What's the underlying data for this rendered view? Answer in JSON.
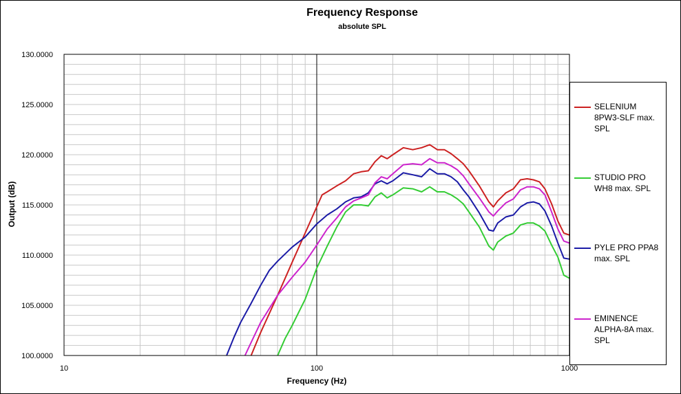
{
  "chart_data": {
    "type": "line",
    "title": "Frequency Response",
    "subtitle": "absolute SPL",
    "xlabel": "Frequency (Hz)",
    "ylabel": "Output (dB)",
    "x_scale": "log",
    "xlim": [
      10,
      1000
    ],
    "ylim": [
      100,
      130
    ],
    "x_tick_labels": [
      "10",
      "100",
      "1000"
    ],
    "y_tick_labels": [
      "100.0000",
      "105.0000",
      "110.0000",
      "115.0000",
      "120.0000",
      "125.0000",
      "130.0000"
    ],
    "y_ticks": [
      100,
      105,
      110,
      115,
      120,
      125,
      130
    ],
    "grid": true,
    "legend_position": "right",
    "series": [
      {
        "name": "SELENIUM 8PW3-SLF max. SPL",
        "color": "#cc2020",
        "x": [
          55,
          60,
          70,
          80,
          90,
          100,
          105,
          110,
          120,
          130,
          140,
          150,
          160,
          170,
          180,
          190,
          200,
          220,
          240,
          260,
          280,
          300,
          320,
          340,
          360,
          380,
          400,
          440,
          480,
          500,
          520,
          560,
          600,
          640,
          680,
          720,
          760,
          800,
          850,
          900,
          950,
          1000
        ],
        "y": [
          100.0,
          102.3,
          106.0,
          109.3,
          112.2,
          114.8,
          116.0,
          116.3,
          116.9,
          117.4,
          118.1,
          118.3,
          118.4,
          119.3,
          119.9,
          119.6,
          120.0,
          120.7,
          120.5,
          120.7,
          121.0,
          120.5,
          120.5,
          120.1,
          119.6,
          119.1,
          118.4,
          116.9,
          115.3,
          114.8,
          115.4,
          116.2,
          116.6,
          117.5,
          117.6,
          117.5,
          117.3,
          116.6,
          115.1,
          113.4,
          112.2,
          112.0
        ]
      },
      {
        "name": "STUDIO PRO WH8 max. SPL",
        "color": "#33cc33",
        "x": [
          70,
          75,
          80,
          90,
          100,
          110,
          120,
          130,
          140,
          150,
          160,
          170,
          180,
          190,
          200,
          220,
          240,
          260,
          280,
          300,
          320,
          340,
          360,
          380,
          400,
          440,
          480,
          500,
          520,
          560,
          600,
          640,
          680,
          720,
          760,
          800,
          850,
          900,
          950,
          1000
        ],
        "y": [
          100.0,
          101.7,
          103.0,
          105.6,
          108.7,
          110.9,
          112.8,
          114.3,
          115.0,
          115.0,
          114.9,
          115.8,
          116.2,
          115.7,
          116.0,
          116.7,
          116.6,
          116.3,
          116.8,
          116.3,
          116.3,
          116.0,
          115.6,
          115.1,
          114.3,
          112.8,
          110.9,
          110.5,
          111.3,
          111.9,
          112.2,
          113.0,
          113.2,
          113.2,
          112.9,
          112.4,
          111.0,
          109.8,
          108.0,
          107.7
        ]
      },
      {
        "name": "PYLE PRO PPA8 max. SPL",
        "color": "#1a1aa6",
        "x": [
          44,
          47,
          50,
          55,
          60,
          65,
          70,
          80,
          90,
          100,
          110,
          120,
          130,
          140,
          150,
          160,
          170,
          180,
          190,
          200,
          220,
          240,
          260,
          280,
          300,
          320,
          340,
          360,
          380,
          400,
          440,
          480,
          500,
          520,
          560,
          600,
          640,
          680,
          720,
          760,
          800,
          850,
          900,
          950,
          1000
        ],
        "y": [
          100.0,
          101.8,
          103.3,
          105.2,
          107.0,
          108.5,
          109.4,
          110.8,
          111.8,
          113.1,
          114.0,
          114.6,
          115.3,
          115.7,
          115.8,
          116.2,
          117.1,
          117.4,
          117.1,
          117.4,
          118.2,
          118.0,
          117.8,
          118.6,
          118.1,
          118.1,
          117.8,
          117.3,
          116.5,
          115.8,
          114.2,
          112.5,
          112.4,
          113.2,
          113.8,
          114.0,
          114.8,
          115.2,
          115.3,
          115.1,
          114.4,
          112.9,
          111.2,
          109.7,
          109.6
        ]
      },
      {
        "name": "EMINENCE ALPHA-8A max. SPL",
        "color": "#cc22cc",
        "x": [
          52,
          55,
          60,
          70,
          80,
          90,
          100,
          110,
          120,
          130,
          140,
          150,
          160,
          170,
          180,
          190,
          200,
          220,
          240,
          260,
          280,
          300,
          320,
          340,
          360,
          380,
          400,
          440,
          480,
          500,
          520,
          560,
          600,
          640,
          680,
          720,
          760,
          800,
          850,
          900,
          950,
          1000
        ],
        "y": [
          100.0,
          101.3,
          103.3,
          106.0,
          107.8,
          109.3,
          111.0,
          112.6,
          113.7,
          114.8,
          115.4,
          115.7,
          116.0,
          117.2,
          117.8,
          117.6,
          118.1,
          119.0,
          119.1,
          119.0,
          119.6,
          119.2,
          119.2,
          118.9,
          118.5,
          117.9,
          117.1,
          115.7,
          114.3,
          113.9,
          114.4,
          115.2,
          115.6,
          116.5,
          116.8,
          116.8,
          116.6,
          116.0,
          114.3,
          112.6,
          111.4,
          111.2
        ]
      }
    ]
  }
}
